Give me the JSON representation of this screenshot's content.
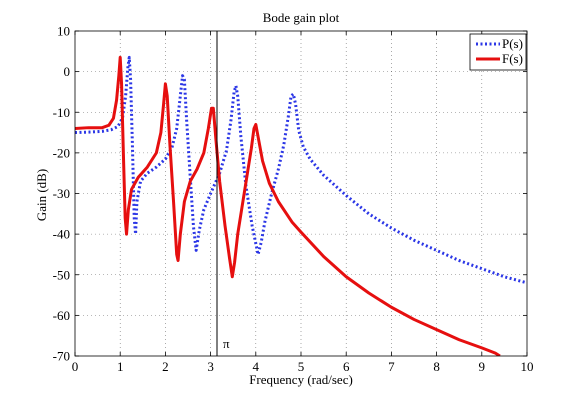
{
  "chart_data": {
    "type": "line",
    "title": "Bode gain plot",
    "xlabel": "Frequency (rad/sec)",
    "ylabel": "Gain (dB)",
    "xlim": [
      0,
      10
    ],
    "ylim": [
      -70,
      10
    ],
    "xticks": [
      0,
      1,
      2,
      3,
      4,
      5,
      6,
      7,
      8,
      9,
      10
    ],
    "yticks": [
      10,
      0,
      -10,
      -20,
      -30,
      -40,
      -50,
      -60,
      -70
    ],
    "grid": true,
    "legend_position": "top-right",
    "annotation": {
      "text": "π",
      "x": 3.1416
    },
    "series": [
      {
        "name": "P(s)",
        "color": "#2b36e6",
        "style": "dotted",
        "points": [
          [
            0.0,
            -15.0
          ],
          [
            0.3,
            -14.9
          ],
          [
            0.6,
            -14.7
          ],
          [
            0.8,
            -14.3
          ],
          [
            0.95,
            -13.5
          ],
          [
            1.05,
            -11.5
          ],
          [
            1.12,
            -6
          ],
          [
            1.17,
            1
          ],
          [
            1.2,
            3.5
          ],
          [
            1.23,
            -2
          ],
          [
            1.27,
            -18
          ],
          [
            1.31,
            -36
          ],
          [
            1.34,
            -40
          ],
          [
            1.37,
            -32
          ],
          [
            1.45,
            -27
          ],
          [
            1.6,
            -25
          ],
          [
            1.8,
            -23.5
          ],
          [
            2.0,
            -21.5
          ],
          [
            2.15,
            -18.5
          ],
          [
            2.25,
            -14
          ],
          [
            2.33,
            -6
          ],
          [
            2.38,
            -1
          ],
          [
            2.42,
            -2
          ],
          [
            2.47,
            -12
          ],
          [
            2.55,
            -26
          ],
          [
            2.62,
            -38
          ],
          [
            2.68,
            -44
          ],
          [
            2.75,
            -39
          ],
          [
            2.85,
            -34
          ],
          [
            3.0,
            -30
          ],
          [
            3.2,
            -25
          ],
          [
            3.35,
            -19.5
          ],
          [
            3.45,
            -12
          ],
          [
            3.52,
            -5
          ],
          [
            3.56,
            -3.5
          ],
          [
            3.6,
            -6
          ],
          [
            3.67,
            -16
          ],
          [
            3.78,
            -28
          ],
          [
            3.92,
            -38
          ],
          [
            4.05,
            -45
          ],
          [
            4.12,
            -42
          ],
          [
            4.2,
            -37
          ],
          [
            4.35,
            -30
          ],
          [
            4.5,
            -24
          ],
          [
            4.62,
            -18
          ],
          [
            4.72,
            -11
          ],
          [
            4.78,
            -6
          ],
          [
            4.83,
            -5.5
          ],
          [
            4.88,
            -8
          ],
          [
            4.95,
            -14.5
          ],
          [
            5.05,
            -18.5
          ],
          [
            5.2,
            -21.5
          ],
          [
            5.5,
            -25.5
          ],
          [
            6.0,
            -30.5
          ],
          [
            6.5,
            -35
          ],
          [
            7.0,
            -38.5
          ],
          [
            7.5,
            -41.5
          ],
          [
            8.0,
            -44
          ],
          [
            8.5,
            -46.5
          ],
          [
            9.0,
            -48.5
          ],
          [
            9.5,
            -50.5
          ],
          [
            10.0,
            -52
          ]
        ]
      },
      {
        "name": "F(s)",
        "color": "#e60f0f",
        "style": "solid",
        "points": [
          [
            0.0,
            -14.0
          ],
          [
            0.3,
            -13.8
          ],
          [
            0.6,
            -13.8
          ],
          [
            0.75,
            -13.2
          ],
          [
            0.85,
            -11.5
          ],
          [
            0.92,
            -7
          ],
          [
            0.97,
            -1
          ],
          [
            1.0,
            3.5
          ],
          [
            1.03,
            -3
          ],
          [
            1.07,
            -20
          ],
          [
            1.11,
            -36
          ],
          [
            1.14,
            -40
          ],
          [
            1.18,
            -34
          ],
          [
            1.25,
            -29
          ],
          [
            1.4,
            -26
          ],
          [
            1.6,
            -23.5
          ],
          [
            1.8,
            -20
          ],
          [
            1.9,
            -15
          ],
          [
            1.96,
            -8
          ],
          [
            2.0,
            -3
          ],
          [
            2.04,
            -6
          ],
          [
            2.1,
            -18
          ],
          [
            2.18,
            -32
          ],
          [
            2.25,
            -45
          ],
          [
            2.28,
            -46.5
          ],
          [
            2.33,
            -40
          ],
          [
            2.42,
            -32
          ],
          [
            2.55,
            -27
          ],
          [
            2.7,
            -24
          ],
          [
            2.85,
            -20
          ],
          [
            2.95,
            -14
          ],
          [
            3.02,
            -9
          ],
          [
            3.06,
            -9
          ],
          [
            3.12,
            -17
          ],
          [
            3.2,
            -27
          ],
          [
            3.32,
            -38
          ],
          [
            3.42,
            -46
          ],
          [
            3.48,
            -50.5
          ],
          [
            3.53,
            -47
          ],
          [
            3.6,
            -40
          ],
          [
            3.7,
            -33
          ],
          [
            3.8,
            -26
          ],
          [
            3.9,
            -19
          ],
          [
            3.96,
            -14
          ],
          [
            4.0,
            -13
          ],
          [
            4.05,
            -16
          ],
          [
            4.15,
            -22
          ],
          [
            4.3,
            -27.5
          ],
          [
            4.5,
            -32
          ],
          [
            4.8,
            -37
          ],
          [
            5.0,
            -39.5
          ],
          [
            5.5,
            -45.5
          ],
          [
            6.0,
            -50.5
          ],
          [
            6.5,
            -54.5
          ],
          [
            7.0,
            -58
          ],
          [
            7.5,
            -61
          ],
          [
            8.0,
            -63.5
          ],
          [
            8.5,
            -66
          ],
          [
            9.0,
            -68
          ],
          [
            9.3,
            -69.3
          ],
          [
            9.4,
            -70
          ]
        ]
      }
    ]
  }
}
